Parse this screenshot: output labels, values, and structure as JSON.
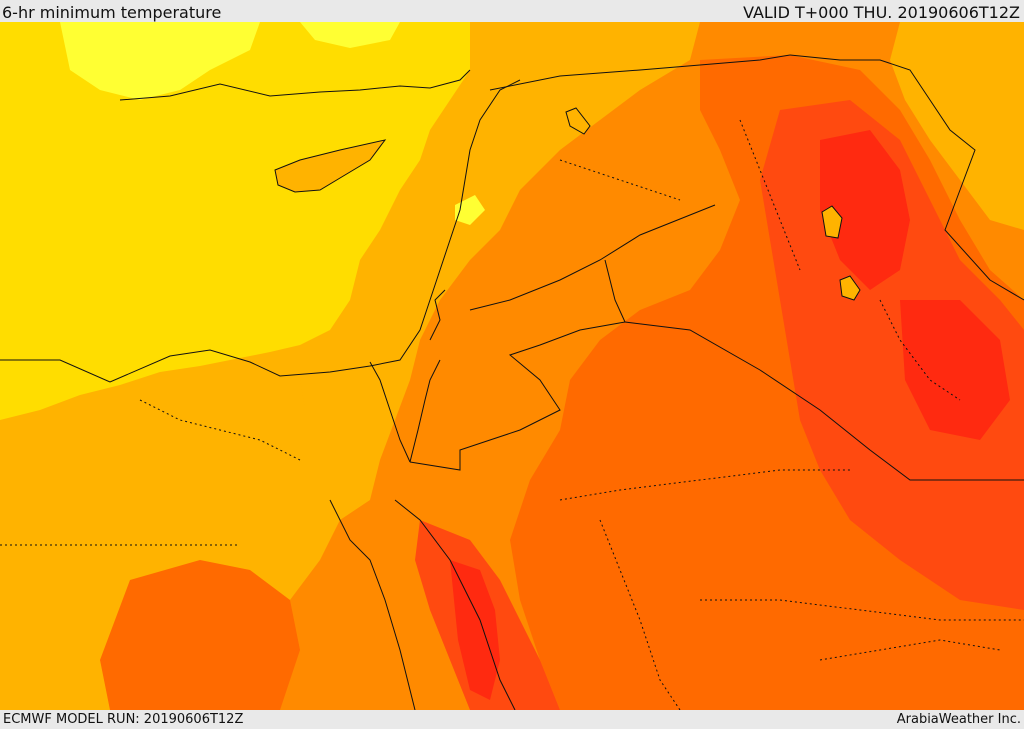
{
  "header": {
    "title": "6-hr minimum temperature",
    "valid": "VALID T+000 THU. 20190606T12Z"
  },
  "footer": {
    "model_run": "ECMWF MODEL RUN: 20190606T12Z",
    "credit": "ArabiaWeather Inc."
  },
  "map": {
    "palette": {
      "light_yellow": "#ffff33",
      "yellow": "#ffdd00",
      "amber": "#ffb300",
      "orange": "#ff8a00",
      "dark_orange": "#ff6a00",
      "red_orange": "#ff4a10",
      "red": "#ff2a10",
      "border": "#111111"
    }
  }
}
